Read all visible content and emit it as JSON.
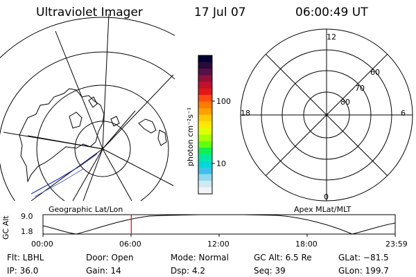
{
  "header": {
    "title": "Ultraviolet Imager",
    "date": "17 Jul 07",
    "time": "06:00:49 UT"
  },
  "colorbar": {
    "unit_label": "photon cm⁻²s⁻¹",
    "ticks": [
      "100",
      "10"
    ],
    "colors": [
      "#000033",
      "#2a0a3a",
      "#55104a",
      "#90103a",
      "#c0102a",
      "#e01818",
      "#ff4a10",
      "#ff7a00",
      "#ffa000",
      "#ffcc00",
      "#ffe800",
      "#e0ff00",
      "#a8ff00",
      "#60ff10",
      "#10f050",
      "#00e8a0",
      "#00d8d8",
      "#40c0e8",
      "#90d8ee",
      "#d0e8f0",
      "#f0f4f6"
    ]
  },
  "polar_plot": {
    "mlt_labels": [
      "12",
      "18",
      "6",
      "0"
    ],
    "mlat_labels": [
      "60",
      "70",
      "80"
    ]
  },
  "panel_labels": {
    "left": "Geographic Lat/Lon",
    "right": "Apex MLat/MLT"
  },
  "altitude_plot": {
    "ylabel": "GC Alt",
    "yticks": [
      "9.0",
      "1.8"
    ],
    "xticks": [
      "00:00",
      "06:00",
      "12:00",
      "18:00",
      "23:59"
    ],
    "current_time_hours": 6.01
  },
  "status": {
    "filter": "Flt: LBHL",
    "ip": "IP: 36.0",
    "door": "Door: Open",
    "gain": "Gain: 14",
    "mode": "Mode: Normal",
    "dsp": "Dsp:    4.2",
    "gc_alt": "GC Alt: 6.5 Re",
    "seq": "Seq: 39",
    "glat": "GLat: −81.5",
    "glon": "GLon: 199.7"
  }
}
